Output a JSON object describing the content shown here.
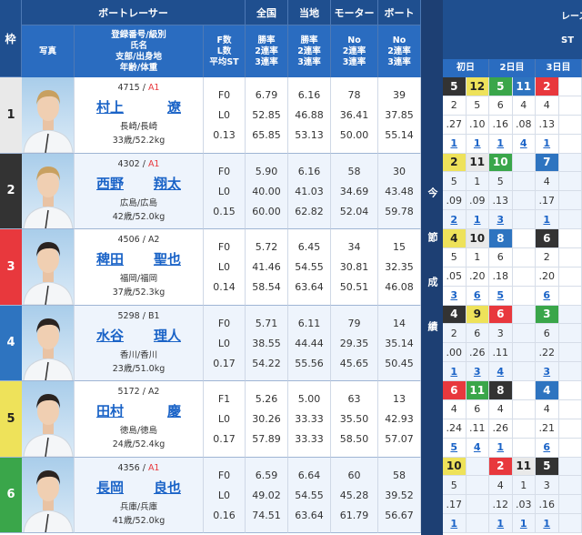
{
  "header": {
    "waku": "枠",
    "boatracer": "ボートレーサー",
    "national": "全国",
    "local": "当地",
    "motor": "モーター",
    "boat": "ボート",
    "photo": "写真",
    "profile": "登録番号/級別\n氏名\n支部/出身地\n年齢/体重",
    "fl": "F数\nL数\n平均ST",
    "national_sub": "勝率\n2連率\n3連率",
    "local_sub": "勝率\n2連率\n3連率",
    "motor_sub": "No\n2連率\n3連率",
    "boat_sub": "No\n2連率\n3連率",
    "series_label": "今節成績",
    "race_header": "レース\nST",
    "days": [
      "初日",
      "2日目",
      "3日目"
    ]
  },
  "colors": {
    "frame": {
      "1": "#e9e9e9",
      "2": "#333333",
      "3": "#e8383d",
      "4": "#2e74c0",
      "5": "#eee25a",
      "6": "#3aa64a"
    },
    "frame_text": {
      "1": "#222222",
      "2": "#ffffff",
      "3": "#ffffff",
      "4": "#ffffff",
      "5": "#222222",
      "6": "#ffffff"
    },
    "class_a1": "#e8383d",
    "link": "#1a63c7"
  },
  "players": [
    {
      "waku": "1",
      "reg": "4715",
      "class": "A1",
      "last": "村上",
      "first": "遼",
      "branch": "長崎/長崎",
      "age_weight": "33歳/52.2kg",
      "fl": [
        "F0",
        "L0",
        "0.13"
      ],
      "national": [
        "6.79",
        "52.85",
        "65.85"
      ],
      "local": [
        "6.16",
        "46.88",
        "53.13"
      ],
      "motor": [
        "78",
        "36.41",
        "50.00"
      ],
      "boat": [
        "39",
        "37.85",
        "55.14"
      ],
      "races": [
        {
          "race": "5",
          "frame": 2,
          "course": "2",
          "st": ".27",
          "rank": "1"
        },
        {
          "race": "12",
          "frame": 5,
          "course": "5",
          "st": ".10",
          "rank": "1"
        },
        {
          "race": "5",
          "frame": 6,
          "course": "6",
          "st": ".16",
          "rank": "1"
        },
        {
          "race": "11",
          "frame": 4,
          "course": "4",
          "st": ".08",
          "rank": "4"
        },
        {
          "race": "2",
          "frame": 3,
          "course": "4",
          "st": ".13",
          "rank": "1"
        },
        null
      ]
    },
    {
      "waku": "2",
      "reg": "4302",
      "class": "A1",
      "last": "西野",
      "first": "翔太",
      "branch": "広島/広島",
      "age_weight": "42歳/52.0kg",
      "fl": [
        "F0",
        "L0",
        "0.15"
      ],
      "national": [
        "5.90",
        "40.00",
        "60.00"
      ],
      "local": [
        "6.16",
        "41.03",
        "62.82"
      ],
      "motor": [
        "58",
        "34.69",
        "52.04"
      ],
      "boat": [
        "30",
        "43.48",
        "59.78"
      ],
      "races": [
        {
          "race": "2",
          "frame": 5,
          "course": "5",
          "st": ".09",
          "rank": "2"
        },
        {
          "race": "11",
          "frame": 1,
          "course": "1",
          "st": ".09",
          "rank": "1"
        },
        {
          "race": "10",
          "frame": 6,
          "course": "5",
          "st": ".13",
          "rank": "3"
        },
        null,
        {
          "race": "7",
          "frame": 4,
          "course": "4",
          "st": ".17",
          "rank": "1"
        },
        null
      ]
    },
    {
      "waku": "3",
      "reg": "4506",
      "class": "A2",
      "last": "稗田",
      "first": "聖也",
      "branch": "福岡/福岡",
      "age_weight": "37歳/52.3kg",
      "fl": [
        "F0",
        "L0",
        "0.14"
      ],
      "national": [
        "5.72",
        "41.46",
        "58.54"
      ],
      "local": [
        "6.45",
        "54.55",
        "63.64"
      ],
      "motor": [
        "34",
        "30.81",
        "50.51"
      ],
      "boat": [
        "15",
        "32.35",
        "46.08"
      ],
      "races": [
        {
          "race": "4",
          "frame": 5,
          "course": "5",
          "st": ".05",
          "rank": "3"
        },
        {
          "race": "10",
          "frame": 1,
          "course": "1",
          "st": ".20",
          "rank": "6"
        },
        {
          "race": "8",
          "frame": 4,
          "course": "6",
          "st": ".18",
          "rank": "5"
        },
        null,
        {
          "race": "6",
          "frame": 2,
          "course": "2",
          "st": ".20",
          "rank": "6"
        },
        null
      ]
    },
    {
      "waku": "4",
      "reg": "5298",
      "class": "B1",
      "last": "水谷",
      "first": "理人",
      "branch": "香川/香川",
      "age_weight": "23歳/51.0kg",
      "fl": [
        "F0",
        "L0",
        "0.17"
      ],
      "national": [
        "5.71",
        "38.55",
        "54.22"
      ],
      "local": [
        "6.11",
        "44.44",
        "55.56"
      ],
      "motor": [
        "79",
        "29.35",
        "45.65"
      ],
      "boat": [
        "14",
        "35.14",
        "50.45"
      ],
      "races": [
        {
          "race": "4",
          "frame": 2,
          "course": "2",
          "st": ".00",
          "rank": "1"
        },
        {
          "race": "9",
          "frame": 5,
          "course": "6",
          "st": ".26",
          "rank": "3"
        },
        {
          "race": "6",
          "frame": 3,
          "course": "3",
          "st": ".11",
          "rank": "4"
        },
        null,
        {
          "race": "3",
          "frame": 6,
          "course": "6",
          "st": ".22",
          "rank": "3"
        },
        null
      ]
    },
    {
      "waku": "5",
      "reg": "5172",
      "class": "A2",
      "last": "田村",
      "first": "慶",
      "branch": "徳島/徳島",
      "age_weight": "24歳/52.4kg",
      "fl": [
        "F1",
        "L0",
        "0.17"
      ],
      "national": [
        "5.26",
        "30.26",
        "57.89"
      ],
      "local": [
        "5.00",
        "33.33",
        "33.33"
      ],
      "motor": [
        "63",
        "35.50",
        "58.50"
      ],
      "boat": [
        "13",
        "42.93",
        "57.07"
      ],
      "races": [
        {
          "race": "6",
          "frame": 3,
          "course": "4",
          "st": ".24",
          "rank": "5"
        },
        {
          "race": "11",
          "frame": 6,
          "course": "6",
          "st": ".11",
          "rank": "4"
        },
        {
          "race": "8",
          "frame": 2,
          "course": "4",
          "st": ".26",
          "rank": "1"
        },
        null,
        {
          "race": "4",
          "frame": 4,
          "course": "4",
          "st": ".21",
          "rank": "6"
        },
        null
      ]
    },
    {
      "waku": "6",
      "reg": "4356",
      "class": "A1",
      "last": "長岡",
      "first": "良也",
      "branch": "兵庫/兵庫",
      "age_weight": "41歳/52.0kg",
      "fl": [
        "F0",
        "L0",
        "0.16"
      ],
      "national": [
        "6.59",
        "49.02",
        "74.51"
      ],
      "local": [
        "6.64",
        "54.55",
        "63.64"
      ],
      "motor": [
        "60",
        "45.28",
        "61.79"
      ],
      "boat": [
        "58",
        "39.52",
        "56.67"
      ],
      "races": [
        {
          "race": "10",
          "frame": 5,
          "course": "5",
          "st": ".17",
          "rank": "1"
        },
        null,
        {
          "race": "2",
          "frame": 3,
          "course": "4",
          "st": ".12",
          "rank": "1"
        },
        {
          "race": "11",
          "frame": 1,
          "course": "1",
          "st": ".03",
          "rank": "1"
        },
        {
          "race": "5",
          "frame": 2,
          "course": "3",
          "st": ".16",
          "rank": "1"
        },
        null
      ]
    }
  ]
}
